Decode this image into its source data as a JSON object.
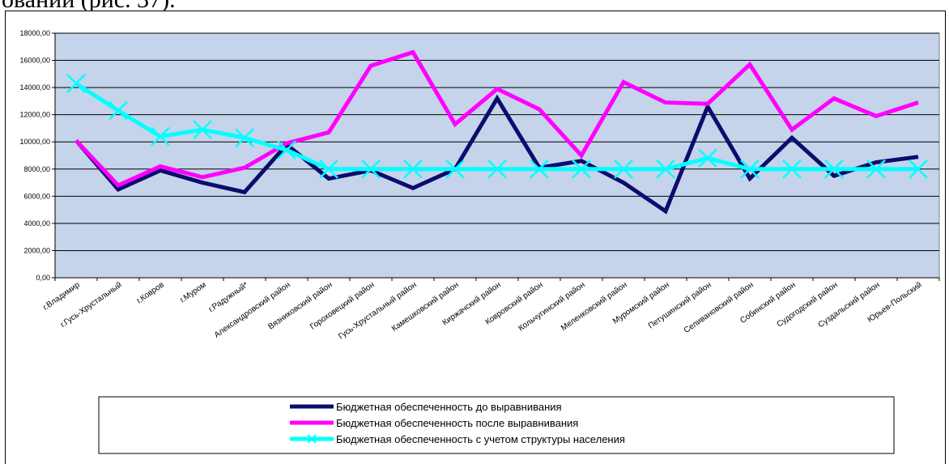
{
  "page_text": "овании (рис. 37).",
  "chart_data": {
    "type": "line",
    "ylim": [
      0,
      18000
    ],
    "yticks": [
      "0,00",
      "2000,00",
      "4000,00",
      "6000,00",
      "8000,00",
      "10000,00",
      "12000,00",
      "14000,00",
      "16000,00",
      "18000,00"
    ],
    "grid": true,
    "legend_position": "bottom",
    "categories": [
      "г.Владимир",
      "г.Гусь-Хрустальный",
      "г.Ковров",
      "г.Муром",
      "г.Радужный*",
      "Александровский район",
      "Вязниковский район",
      "Гороховецкий район",
      "Гусь-Хрустальный район",
      "Камешковский район",
      "Киржачский район",
      "Ковровский район",
      "Кольчугинский район",
      "Меленковский район",
      "Муромский район",
      "Петушинский район",
      "Селивановский район",
      "Собинский район",
      "Судогодский район",
      "Суздальский район",
      "Юрьев-Польский"
    ],
    "colors": {
      "plot_bg": "#C5D4EA",
      "grid": "#000000"
    },
    "series": [
      {
        "name": "Бюджетная обеспеченность до выравнивания",
        "color": "#0C0C6E",
        "marker": "none",
        "values": [
          10100,
          6500,
          7900,
          7000,
          6300,
          9800,
          7300,
          7900,
          6600,
          8000,
          13200,
          8100,
          8600,
          7000,
          4900,
          12600,
          7300,
          10300,
          7500,
          8500,
          8900
        ]
      },
      {
        "name": "Бюджетная обеспеченность после выравнивания",
        "color": "#FF00FF",
        "marker": "none",
        "values": [
          10100,
          6800,
          8200,
          7400,
          8100,
          9900,
          10700,
          15600,
          16600,
          11300,
          13900,
          12400,
          9000,
          14400,
          12900,
          12800,
          15700,
          10900,
          13200,
          11900,
          12900
        ]
      },
      {
        "name": "Бюджетная обеспеченность с учетом структуры населения",
        "color": "#00FFFF",
        "marker": "x",
        "values": [
          14300,
          12300,
          10400,
          10900,
          10300,
          9400,
          8000,
          8000,
          8000,
          8000,
          8000,
          8000,
          8000,
          8000,
          8000,
          8800,
          8000,
          8000,
          8000,
          8000,
          8000
        ]
      }
    ]
  }
}
